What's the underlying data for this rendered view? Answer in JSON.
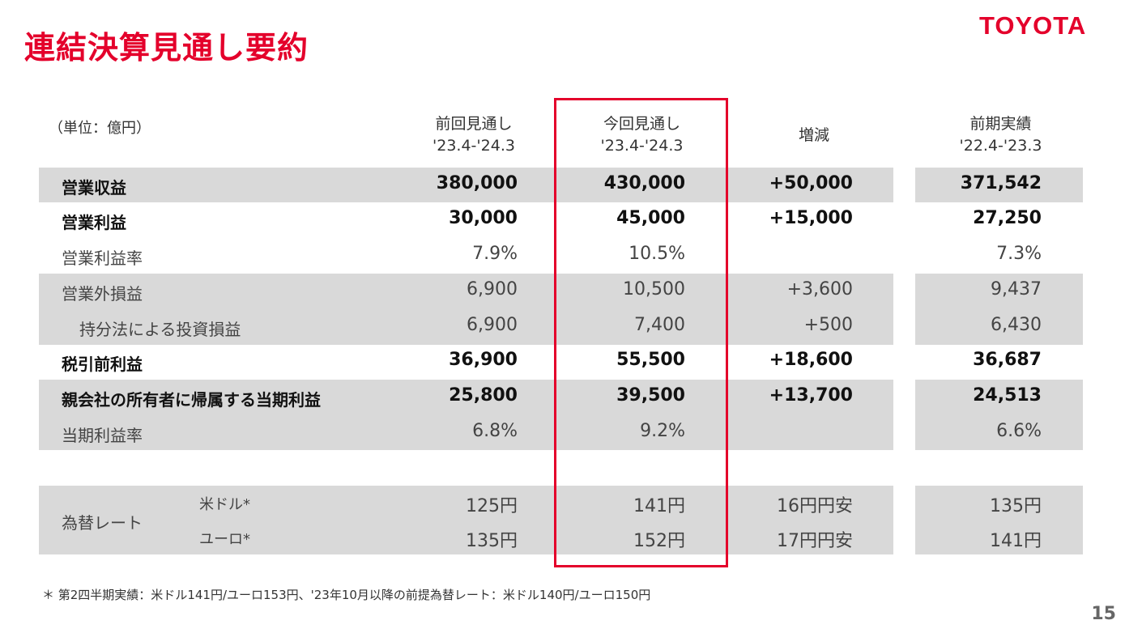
{
  "header": {
    "title": "連結決算見通し要約",
    "logo": "TOYOTA"
  },
  "table": {
    "unit": "（単位：億円）",
    "columns": [
      {
        "line1": "前回見通し",
        "line2": "'23.4-'24.3"
      },
      {
        "line1": "今回見通し",
        "line2": "'23.4-'24.3"
      },
      {
        "line1": "増減",
        "line2": ""
      },
      {
        "line1": "前期実績",
        "line2": "'22.4-'23.3"
      }
    ],
    "rows": [
      {
        "label": "営業収益",
        "values": [
          "380,000",
          "430,000",
          "+50,000",
          "371,542"
        ]
      },
      {
        "label": "営業利益",
        "values": [
          "30,000",
          "45,000",
          "+15,000",
          "27,250"
        ]
      },
      {
        "label": "営業利益率",
        "values": [
          "7.9%",
          "10.5%",
          "",
          "7.3%"
        ]
      },
      {
        "label": "営業外損益",
        "values": [
          "6,900",
          "10,500",
          "+3,600",
          "9,437"
        ]
      },
      {
        "label": "持分法による投資損益",
        "values": [
          "6,900",
          "7,400",
          "+500",
          "6,430"
        ]
      },
      {
        "label": "税引前利益",
        "values": [
          "36,900",
          "55,500",
          "+18,600",
          "36,687"
        ]
      },
      {
        "label": "親会社の所有者に帰属する当期利益",
        "values": [
          "25,800",
          "39,500",
          "+13,700",
          "24,513"
        ]
      },
      {
        "label": "当期利益率",
        "values": [
          "6.8%",
          "9.2%",
          "",
          "6.6%"
        ]
      }
    ],
    "fx": {
      "label": "為替レート",
      "rows": [
        {
          "label": "米ドル*",
          "values": [
            "125円",
            "141円",
            "16円円安",
            "135円"
          ]
        },
        {
          "label": "ユーロ*",
          "values": [
            "135円",
            "152円",
            "17円円安",
            "141円"
          ]
        }
      ]
    }
  },
  "footnote": "＊ 第2四半期実績：米ドル141円/ユーロ153円、'23年10月以降の前提為替レート：米ドル140円/ユーロ150円",
  "page_number": "15",
  "colors": {
    "brand_red": "#e4002b",
    "band_gray": "#d9d9d9"
  }
}
